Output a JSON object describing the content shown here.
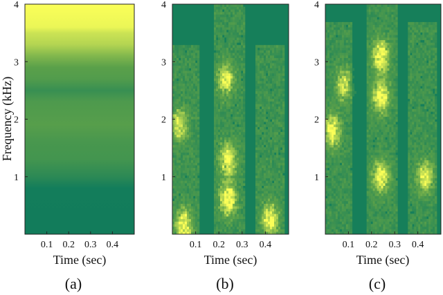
{
  "colors": {
    "low": "#0d7a5c",
    "mid": "#5aa04a",
    "high": "#fbff58",
    "frame": "#222222"
  },
  "chart_data": [
    {
      "type": "heatmap",
      "panel": "a",
      "caption": "(a)",
      "xlabel": "Time (sec)",
      "ylabel": "Frequency (kHz)",
      "xlim": [
        0,
        0.5
      ],
      "ylim": [
        0,
        4
      ],
      "xticks": [
        0.1,
        0.2,
        0.3,
        0.4
      ],
      "xtick_labels": [
        "0.1",
        "0.2",
        "0.3",
        "0.4"
      ],
      "yticks": [
        1,
        2,
        3,
        4
      ],
      "ytick_labels": [
        "1",
        "2",
        "3",
        "4"
      ],
      "frequency_profile": {
        "freq_khz": [
          0.0,
          0.8,
          1.0,
          1.3,
          1.6,
          1.9,
          2.1,
          2.3,
          2.5,
          2.7,
          2.9,
          3.1,
          3.3,
          3.5,
          3.6,
          4.0
        ],
        "intensity": [
          0.03,
          0.04,
          0.2,
          0.35,
          0.38,
          0.48,
          0.45,
          0.42,
          0.28,
          0.45,
          0.5,
          0.62,
          0.78,
          0.85,
          0.95,
          1.0
        ]
      }
    },
    {
      "type": "heatmap",
      "panel": "b",
      "caption": "(b)",
      "xlabel": "Time (sec)",
      "xlim": [
        0,
        0.5
      ],
      "ylim": [
        0,
        4
      ],
      "xticks": [
        0.1,
        0.2,
        0.3,
        0.4
      ],
      "xtick_labels": [
        "0.1",
        "0.2",
        "0.3",
        "0.4"
      ],
      "yticks": [
        1,
        2,
        3,
        4
      ],
      "ytick_labels": [
        "1",
        "2",
        "3",
        "4"
      ],
      "speech_segments": [
        {
          "t_start": 0.0,
          "t_end": 0.12,
          "f_max_khz": 3.3
        },
        {
          "t_start": 0.18,
          "t_end": 0.31,
          "f_max_khz": 4.0
        },
        {
          "t_start": 0.36,
          "t_end": 0.48,
          "f_max_khz": 3.3
        }
      ],
      "bright_regions": [
        {
          "t": 0.05,
          "f_khz": 0.15,
          "intensity": 0.95
        },
        {
          "t": 0.24,
          "f_khz": 0.6,
          "intensity": 0.95
        },
        {
          "t": 0.24,
          "f_khz": 1.3,
          "intensity": 0.9
        },
        {
          "t": 0.42,
          "f_khz": 0.25,
          "intensity": 0.85
        },
        {
          "t": 0.23,
          "f_khz": 2.7,
          "intensity": 0.75
        },
        {
          "t": 0.03,
          "f_khz": 1.9,
          "intensity": 0.7
        }
      ]
    },
    {
      "type": "heatmap",
      "panel": "c",
      "caption": "(c)",
      "xlabel": "Time (sec)",
      "xlim": [
        0,
        0.5
      ],
      "ylim": [
        0,
        4
      ],
      "xticks": [
        0.1,
        0.2,
        0.3,
        0.4
      ],
      "xtick_labels": [
        "0.1",
        "0.2",
        "0.3",
        "0.4"
      ],
      "yticks": [
        1,
        2,
        3,
        4
      ],
      "ytick_labels": [
        "1",
        "2",
        "3",
        "4"
      ],
      "speech_segments": [
        {
          "t_start": 0.0,
          "t_end": 0.12,
          "f_max_khz": 3.7
        },
        {
          "t_start": 0.18,
          "t_end": 0.31,
          "f_max_khz": 4.0
        },
        {
          "t_start": 0.36,
          "t_end": 0.48,
          "f_max_khz": 3.7
        }
      ],
      "bright_regions": [
        {
          "t": 0.24,
          "f_khz": 3.1,
          "intensity": 0.95
        },
        {
          "t": 0.24,
          "f_khz": 2.4,
          "intensity": 0.9
        },
        {
          "t": 0.24,
          "f_khz": 1.0,
          "intensity": 0.9
        },
        {
          "t": 0.03,
          "f_khz": 1.8,
          "intensity": 0.85
        },
        {
          "t": 0.43,
          "f_khz": 1.0,
          "intensity": 0.8
        },
        {
          "t": 0.08,
          "f_khz": 2.6,
          "intensity": 0.7
        }
      ]
    }
  ]
}
